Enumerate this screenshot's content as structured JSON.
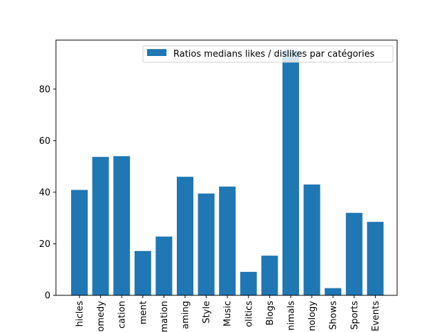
{
  "chart_data": {
    "type": "bar",
    "categories": [
      "hicles",
      "omedy",
      "cation",
      "ment",
      "mation",
      "aming",
      "Style",
      "Music",
      "olitics",
      "Blogs",
      "nimals",
      "nology",
      "Shows",
      "Sports",
      "Events"
    ],
    "series": [
      {
        "name": "Ratios medians likes / dislikes par catégories",
        "color": "#1f77b4",
        "values": [
          40.9,
          53.7,
          54.0,
          17.2,
          22.8,
          46.0,
          39.5,
          42.2,
          9.1,
          15.4,
          95.0,
          43.0,
          2.8,
          32.0,
          28.5
        ]
      }
    ],
    "yticks": [
      0,
      20,
      40,
      60,
      80
    ],
    "ylim": [
      0,
      99
    ],
    "legend_position": "top-right",
    "grid": false
  }
}
